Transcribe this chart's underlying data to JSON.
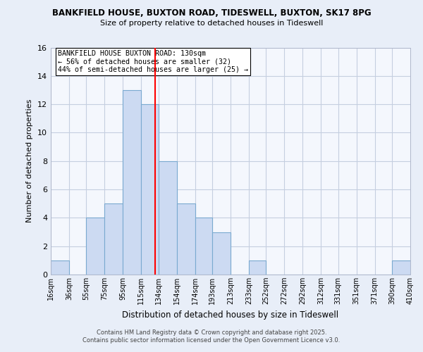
{
  "title1": "BANKFIELD HOUSE, BUXTON ROAD, TIDESWELL, BUXTON, SK17 8PG",
  "title2": "Size of property relative to detached houses in Tideswell",
  "xlabel": "Distribution of detached houses by size in Tideswell",
  "ylabel": "Number of detached properties",
  "bar_edges": [
    16,
    36,
    55,
    75,
    95,
    115,
    134,
    154,
    174,
    193,
    213,
    233,
    252,
    272,
    292,
    312,
    331,
    351,
    371,
    390,
    410
  ],
  "bar_heights": [
    1,
    0,
    4,
    5,
    13,
    12,
    8,
    5,
    4,
    3,
    0,
    1,
    0,
    0,
    0,
    0,
    0,
    0,
    0,
    1
  ],
  "bar_color": "#ccdaf2",
  "bar_edgecolor": "#7aaad0",
  "reference_line_x": 130,
  "reference_line_color": "red",
  "ylim": [
    0,
    16
  ],
  "yticks": [
    0,
    2,
    4,
    6,
    8,
    10,
    12,
    14,
    16
  ],
  "tick_labels": [
    "16sqm",
    "36sqm",
    "55sqm",
    "75sqm",
    "95sqm",
    "115sqm",
    "134sqm",
    "154sqm",
    "174sqm",
    "193sqm",
    "213sqm",
    "233sqm",
    "252sqm",
    "272sqm",
    "292sqm",
    "312sqm",
    "331sqm",
    "351sqm",
    "371sqm",
    "390sqm",
    "410sqm"
  ],
  "annotation_title": "BANKFIELD HOUSE BUXTON ROAD: 130sqm",
  "annotation_line1": "← 56% of detached houses are smaller (32)",
  "annotation_line2": "44% of semi-detached houses are larger (25) →",
  "footer1": "Contains HM Land Registry data © Crown copyright and database right 2025.",
  "footer2": "Contains public sector information licensed under the Open Government Licence v3.0.",
  "bg_color": "#e8eef8",
  "plot_bg_color": "#f4f7fd",
  "grid_color": "#c5cfe0"
}
